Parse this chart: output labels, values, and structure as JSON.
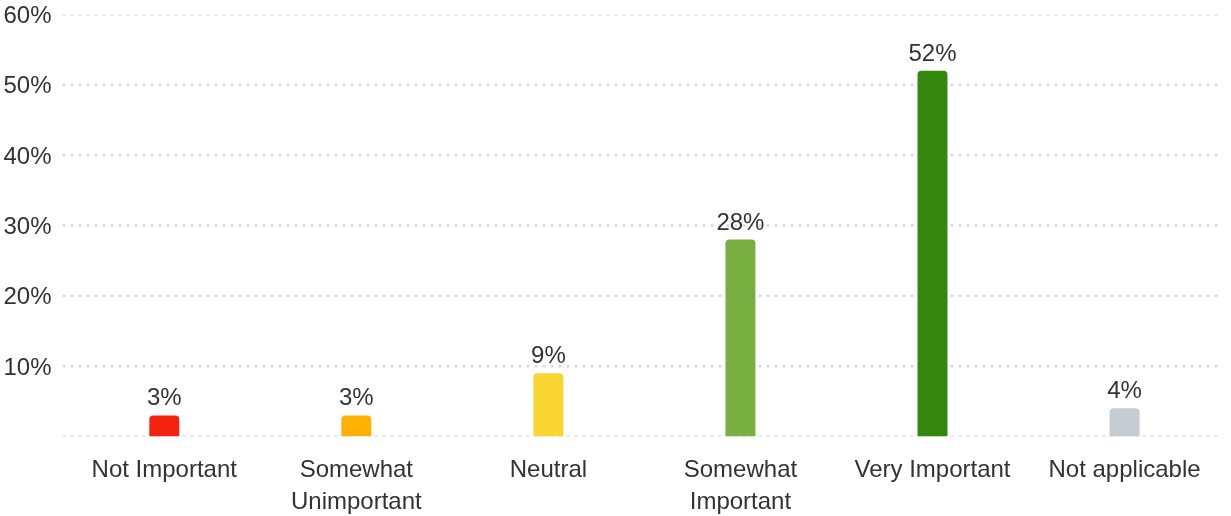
{
  "chart_data": {
    "type": "bar",
    "categories": [
      "Not Important",
      "Somewhat Unimportant",
      "Neutral",
      "Somewhat Important",
      "Very Important",
      "Not applicable"
    ],
    "values": [
      3,
      3,
      9,
      28,
      52,
      4
    ],
    "value_labels": [
      "3%",
      "3%",
      "9%",
      "28%",
      "52%",
      "4%"
    ],
    "colors": [
      "#f5220f",
      "#ffb000",
      "#f9d531",
      "#79ae41",
      "#34870d",
      "#c5ccd2"
    ],
    "ylim": [
      0,
      60
    ],
    "yticks": [
      {
        "value": 0,
        "label": null
      },
      {
        "value": 10,
        "label": "10%"
      },
      {
        "value": 20,
        "label": "20%"
      },
      {
        "value": 30,
        "label": "30%"
      },
      {
        "value": 40,
        "label": "40%"
      },
      {
        "value": 50,
        "label": "50%"
      },
      {
        "value": 60,
        "label": "60%"
      }
    ],
    "grid": "y"
  }
}
